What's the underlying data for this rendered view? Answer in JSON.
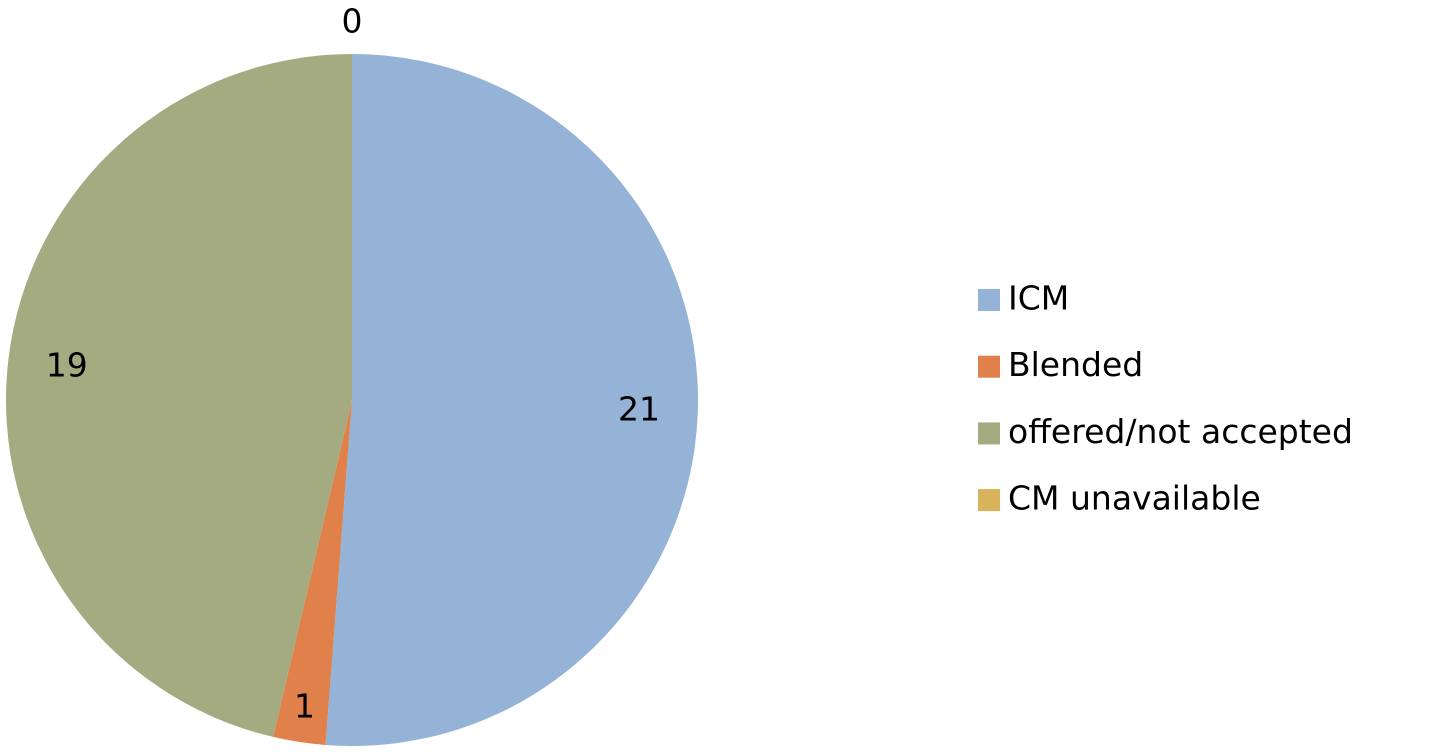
{
  "chart_data": {
    "type": "pie",
    "categories": [
      "ICM",
      "Blended",
      "offered/not accepted",
      "CM unavailable"
    ],
    "values": [
      21,
      1,
      19,
      0
    ],
    "colors": [
      "#95b3d7",
      "#e0804a",
      "#a5ab80",
      "#d9b25c"
    ],
    "legend": "right"
  }
}
